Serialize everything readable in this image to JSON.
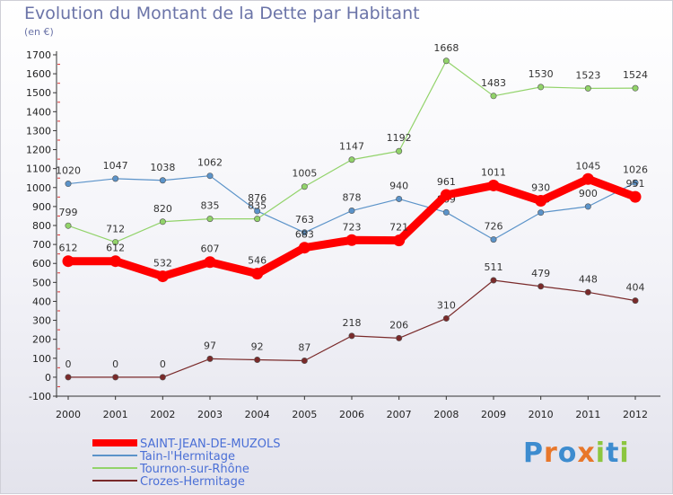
{
  "chart_data": {
    "type": "line",
    "title": "Evolution du Montant de la Dette par Habitant",
    "subtitle": "(en €)",
    "x": [
      2000,
      2001,
      2002,
      2003,
      2004,
      2005,
      2006,
      2007,
      2008,
      2009,
      2010,
      2011,
      2012
    ],
    "ylim": [
      -100,
      1700
    ],
    "yticks": [
      -100,
      0,
      100,
      200,
      300,
      400,
      500,
      600,
      700,
      800,
      900,
      1000,
      1100,
      1200,
      1300,
      1400,
      1500,
      1600,
      1700
    ],
    "grid": false,
    "legend": "bottom-left",
    "series": [
      {
        "name": "SAINT-JEAN-DE-MUZOLS",
        "color": "#ff0000",
        "values": [
          612,
          612,
          532,
          607,
          546,
          683,
          723,
          721,
          961,
          1011,
          930,
          1045,
          951
        ]
      },
      {
        "name": "Tain-l'Hermitage",
        "color": "#5b93c9",
        "values": [
          1020,
          1047,
          1038,
          1062,
          876,
          763,
          878,
          940,
          869,
          726,
          868,
          900,
          1026
        ]
      },
      {
        "name": "Tournon-sur-Rhône",
        "color": "#92d36a",
        "values": [
          799,
          712,
          820,
          835,
          835,
          1005,
          1147,
          1192,
          1668,
          1483,
          1530,
          1523,
          1524
        ]
      },
      {
        "name": "Crozes-Hermitage",
        "color": "#7a2a2a",
        "values": [
          0,
          0,
          0,
          97,
          92,
          87,
          218,
          206,
          310,
          511,
          479,
          448,
          404
        ]
      }
    ]
  },
  "logo": {
    "text": "Proxiti",
    "letters": [
      "P",
      "r",
      "o",
      "x",
      "i",
      "t",
      "i"
    ],
    "colors": [
      "#3d8ccf",
      "#e8772a",
      "#3d8ccf",
      "#e8772a",
      "#8cc63f",
      "#3d8ccf",
      "#8cc63f"
    ]
  }
}
